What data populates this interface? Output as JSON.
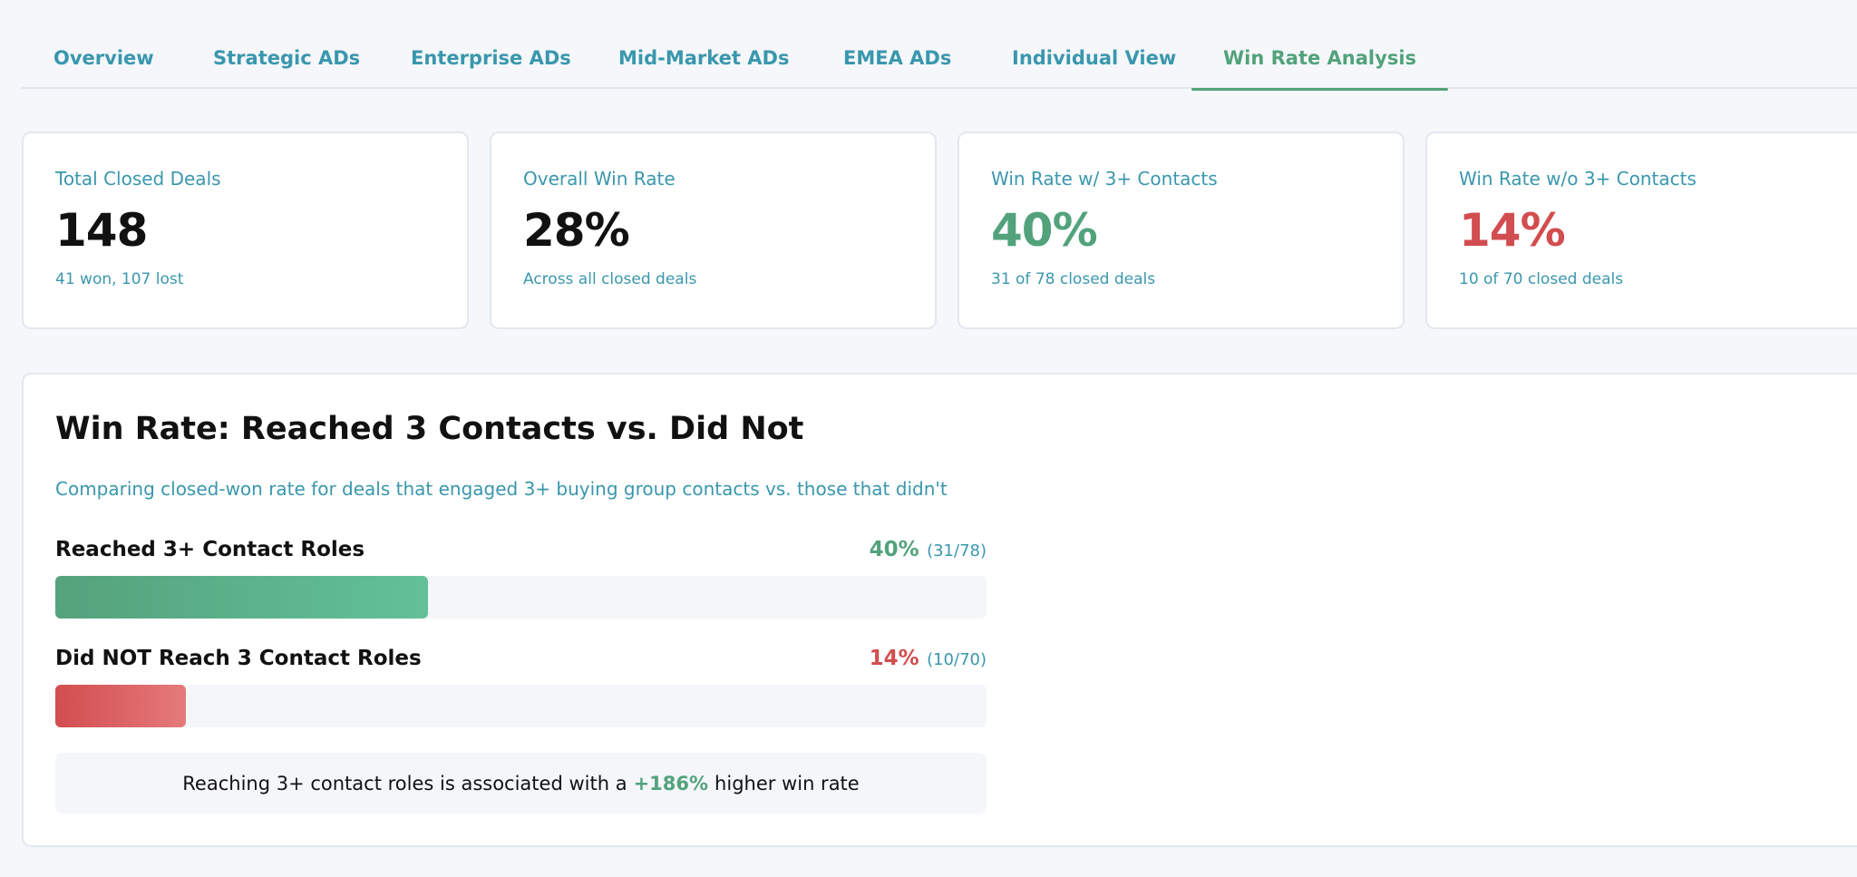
{
  "tabs": [
    {
      "label": "Overview",
      "active": false
    },
    {
      "label": "Strategic ADs",
      "active": false
    },
    {
      "label": "Enterprise ADs",
      "active": false
    },
    {
      "label": "Mid-Market ADs",
      "active": false
    },
    {
      "label": "EMEA ADs",
      "active": false
    },
    {
      "label": "Individual View",
      "active": false
    },
    {
      "label": "Win Rate Analysis",
      "active": true
    }
  ],
  "stats": [
    {
      "label": "Total Closed Deals",
      "value": "148",
      "sub": "41 won, 107 lost"
    },
    {
      "label": "Overall Win Rate",
      "value": "28%",
      "sub": "Across all closed deals"
    },
    {
      "label": "Win Rate w/ 3+ Contacts",
      "value": "40%",
      "sub": "31 of 78 closed deals"
    },
    {
      "label": "Win Rate w/o 3+ Contacts",
      "value": "14%",
      "sub": "10 of 70 closed deals"
    }
  ],
  "panel": {
    "title": "Win Rate: Reached 3 Contacts vs. Did Not",
    "subtitle": "Comparing closed-won rate for deals that engaged 3+ buying group contacts vs. those that didn't",
    "bars": [
      {
        "label": "Reached 3+ Contact Roles",
        "pct_text": "40%",
        "fraction_text": "(31/78)",
        "value": 0.4
      },
      {
        "label": "Did NOT Reach 3 Contact Roles",
        "pct_text": "14%",
        "fraction_text": "(10/70)",
        "value": 0.14
      }
    ],
    "summary": {
      "before": "Reaching 3+ contact roles is associated with a",
      "lift": "+186%",
      "after": "higher win rate"
    }
  },
  "colors": {
    "accent_teal": "#3a97ad",
    "positive_green": "#52a27c",
    "negative_red": "#d24d4f"
  }
}
